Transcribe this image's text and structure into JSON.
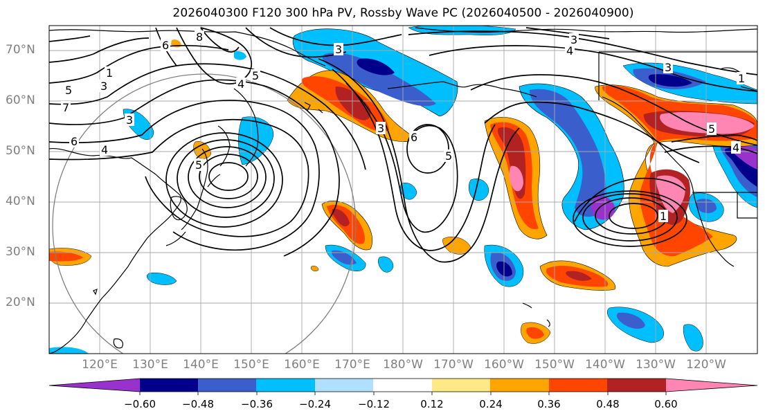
{
  "title": "2026040300 F120 300 hPa PV, Rossby Wave PC (2026040500 - 2026040900)",
  "latitude_labels": [
    "70°N",
    "60°N",
    "50°N",
    "40°N",
    "30°N",
    "20°N"
  ],
  "longitude_labels": [
    "120°E",
    "130°E",
    "140°E",
    "150°E",
    "160°E",
    "170°E",
    "180°W",
    "170°W",
    "160°W",
    "150°W",
    "140°W",
    "130°W",
    "120°W"
  ],
  "colorbar": {
    "tick_labels": [
      "−0.60",
      "−0.48",
      "−0.36",
      "−0.24",
      "−0.12",
      "0.12",
      "0.24",
      "0.36",
      "0.48",
      "0.60"
    ],
    "colors": [
      "#9932cc",
      "#00008b",
      "#3a5fcd",
      "#00bfff",
      "#b0e0ff",
      "#ffffff",
      "#ffe987",
      "#ffa500",
      "#ff4500",
      "#b22222",
      "#ff85b3"
    ]
  },
  "contour_labels": [
    "1",
    "3",
    "5",
    "7",
    "6",
    "4",
    "4",
    "5",
    "3",
    "3",
    "4",
    "1",
    "3",
    "6",
    "5",
    "5",
    "3",
    "4",
    "1",
    "5",
    "3",
    "6",
    "8"
  ],
  "map": {
    "region": "North Pacific",
    "lat_range": [
      10,
      75
    ],
    "lon_range": [
      110,
      250
    ],
    "circle_center": [
      140,
      40
    ]
  }
}
